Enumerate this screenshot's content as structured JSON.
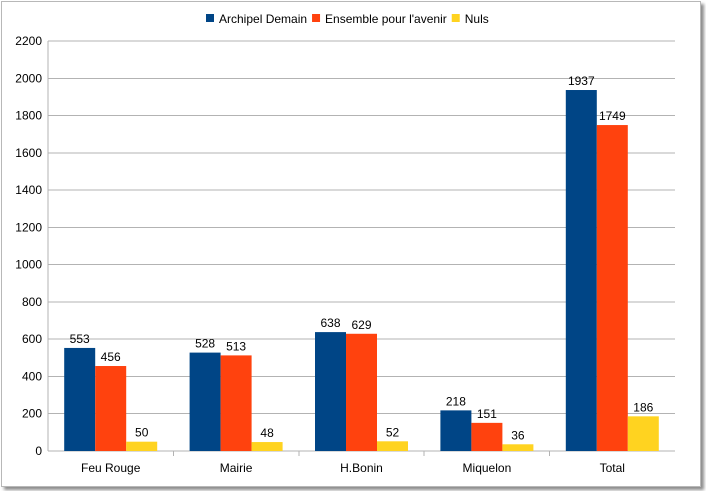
{
  "chart_data": {
    "type": "bar",
    "categories": [
      "Feu Rouge",
      "Mairie",
      "H.Bonin",
      "Miquelon",
      "Total"
    ],
    "series": [
      {
        "name": "Archipel Demain",
        "color": "#004586",
        "values": [
          553,
          528,
          638,
          218,
          1937
        ]
      },
      {
        "name": "Ensemble pour l'avenir",
        "color": "#ff420e",
        "values": [
          456,
          513,
          629,
          151,
          1749
        ]
      },
      {
        "name": "Nuls",
        "color": "#ffd320",
        "values": [
          50,
          48,
          52,
          36,
          186
        ]
      }
    ],
    "ylim": [
      0,
      2200
    ],
    "yticks": [
      0,
      200,
      400,
      600,
      800,
      1000,
      1200,
      1400,
      1600,
      1800,
      2000,
      2200
    ],
    "grid": true,
    "legend_position": "top-center",
    "data_labels": true
  }
}
